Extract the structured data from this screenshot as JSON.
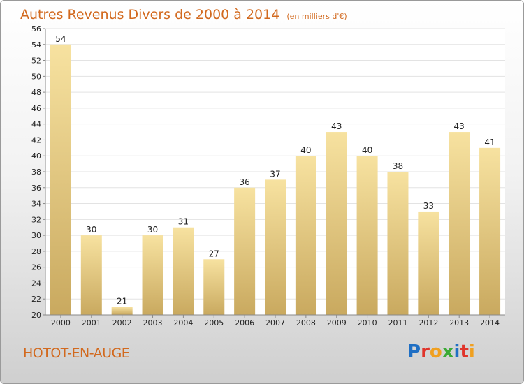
{
  "header": {
    "title": "Autres Revenus Divers de 2000 à 2014",
    "subtitle": "(en milliers d'€)"
  },
  "location": "HOTOT-EN-AUGE",
  "logo": {
    "text": "Proxiti",
    "letter_colors": [
      "#1f6fc4",
      "#e0342b",
      "#f0a020",
      "#3aaa35",
      "#1f6fc4",
      "#e0342b",
      "#f0a020"
    ]
  },
  "chart_data": {
    "type": "bar",
    "title": "Autres Revenus Divers de 2000 à 2014",
    "subtitle": "(en milliers d'€)",
    "xlabel": "",
    "ylabel": "",
    "categories": [
      "2000",
      "2001",
      "2002",
      "2003",
      "2004",
      "2005",
      "2006",
      "2007",
      "2008",
      "2009",
      "2010",
      "2011",
      "2012",
      "2013",
      "2014"
    ],
    "values": [
      54,
      30,
      21,
      30,
      31,
      27,
      36,
      37,
      40,
      43,
      40,
      38,
      33,
      43,
      41
    ],
    "ylim": [
      20,
      56
    ],
    "yticks": [
      20,
      22,
      24,
      26,
      28,
      30,
      32,
      34,
      36,
      38,
      40,
      42,
      44,
      46,
      48,
      50,
      52,
      54,
      56
    ],
    "grid": true,
    "colors": {
      "bar_light": "#f7e2a0",
      "bar_dark": "#c9a95f",
      "grid": "#e3e3e3",
      "axis": "#888888"
    }
  }
}
